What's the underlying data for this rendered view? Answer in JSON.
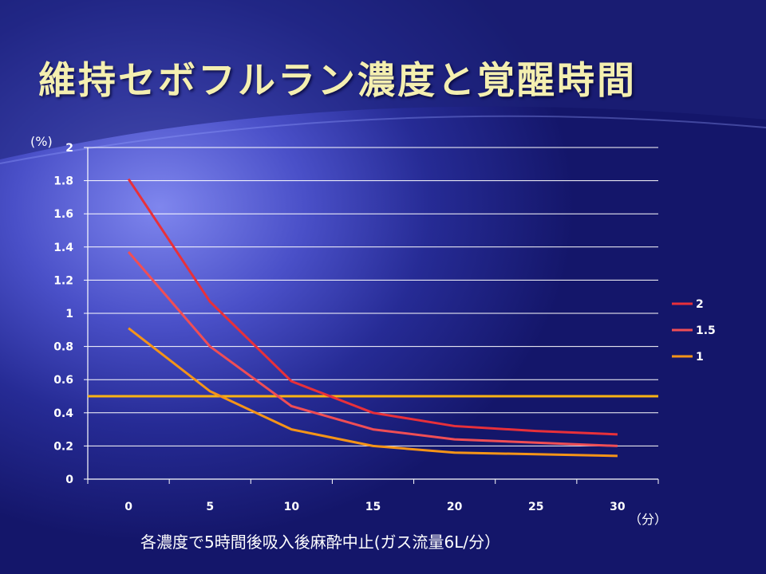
{
  "slide": {
    "title": "維持セボフルラン濃度と覚醒時間",
    "caption": "各濃度で5時間後吸入後麻酔中止(ガス流量6L/分）"
  },
  "chart_data": {
    "type": "line",
    "x": [
      0,
      5,
      10,
      15,
      20,
      25,
      30
    ],
    "x_tick_labels": [
      "0",
      "5",
      "10",
      "15",
      "20",
      "25",
      "30"
    ],
    "y_tick_labels": [
      "0",
      "0.2",
      "0.4",
      "0.6",
      "0.8",
      "1",
      "1.2",
      "1.4",
      "1.6",
      "1.8",
      "2"
    ],
    "ylim": [
      0,
      2
    ],
    "y_unit": "(%)",
    "x_unit": "（分）",
    "grid": true,
    "legend_position": "right",
    "series": [
      {
        "name": "2",
        "color": "#e8303a",
        "values": [
          1.81,
          1.07,
          0.59,
          0.4,
          0.32,
          0.29,
          0.27
        ]
      },
      {
        "name": "1.5",
        "color": "#f04e55",
        "values": [
          1.37,
          0.8,
          0.44,
          0.3,
          0.24,
          0.22,
          0.2
        ]
      },
      {
        "name": "1",
        "color": "#f59418",
        "values": [
          0.91,
          0.53,
          0.3,
          0.2,
          0.16,
          0.15,
          0.14
        ]
      }
    ],
    "reference_line": {
      "y": 0.5,
      "color": "#f9b314"
    }
  }
}
